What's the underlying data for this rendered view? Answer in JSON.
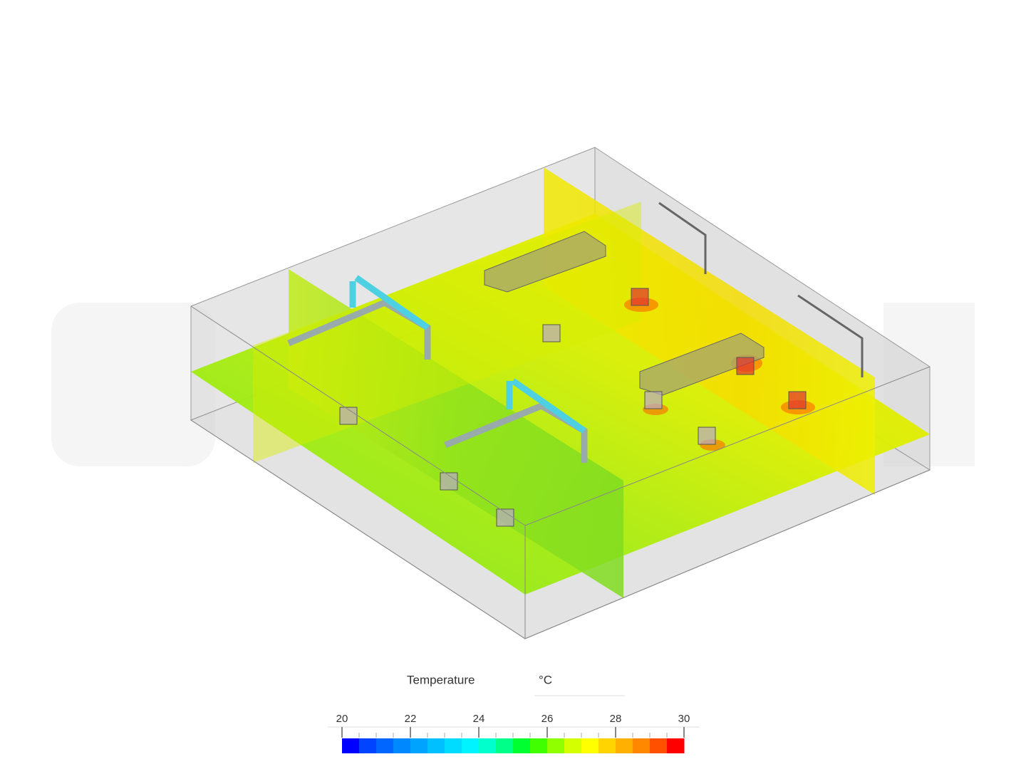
{
  "legend": {
    "title": "Temperature",
    "unit": "°C",
    "min": 20,
    "max": 30,
    "ticks": [
      20,
      22,
      24,
      26,
      28,
      30
    ],
    "colors": [
      "#0000ff",
      "#0044ff",
      "#0066ff",
      "#0088ff",
      "#00a4ff",
      "#00c0ff",
      "#00dcff",
      "#00f4ff",
      "#00ffcc",
      "#00ff88",
      "#00ff30",
      "#40ff00",
      "#90ff00",
      "#d4ff00",
      "#ffff00",
      "#ffd400",
      "#ffb000",
      "#ff8800",
      "#ff5000",
      "#ff0000"
    ]
  }
}
